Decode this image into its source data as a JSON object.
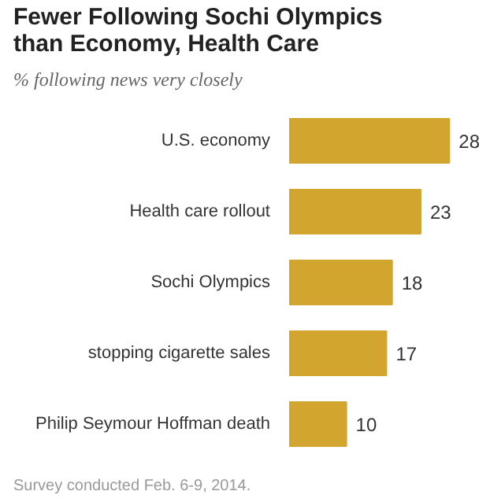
{
  "chart_data": {
    "type": "bar",
    "orientation": "horizontal",
    "title": "Fewer Following Sochi Olympics than Economy, Health Care",
    "subtitle": "% following news very closely",
    "categories": [
      "U.S. economy",
      "Health care rollout",
      "Sochi Olympics",
      "stopping cigarette sales",
      "Philip Seymour Hoffman death"
    ],
    "values": [
      28,
      23,
      18,
      17,
      10
    ],
    "color": "#d2a52f",
    "data_labels": true,
    "grid": false,
    "annotations": [
      "Survey conducted Feb. 6-9, 2014."
    ]
  }
}
